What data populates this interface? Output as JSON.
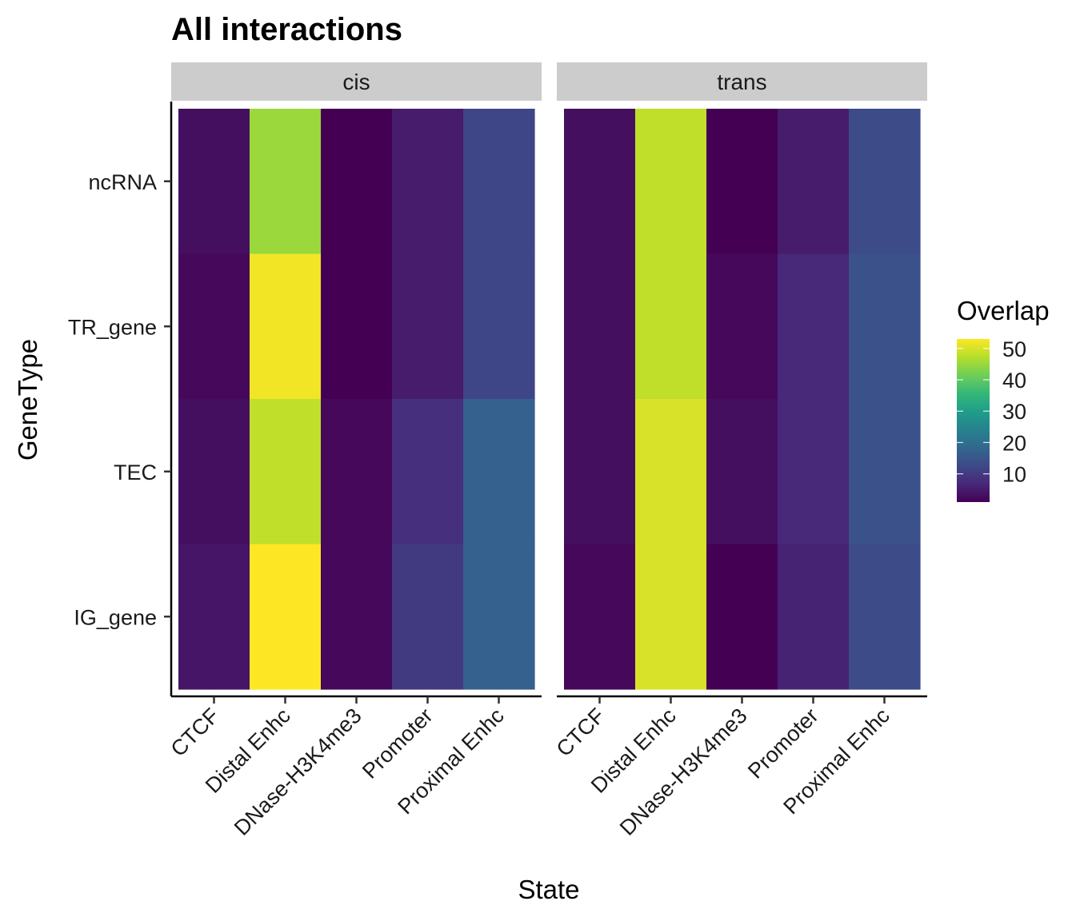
{
  "chart_data": {
    "type": "heatmap",
    "title": "All interactions",
    "xlabel": "State",
    "ylabel": "GeneType",
    "facets": [
      "cis",
      "trans"
    ],
    "x_categories": [
      "CTCF",
      "Distal Enhc",
      "DNase-H3K4me3",
      "Promoter",
      "Proximal Enhc"
    ],
    "y_categories": [
      "ncRNA",
      "TR_gene",
      "TEC",
      "IG_gene"
    ],
    "values": {
      "cis": {
        "ncRNA": [
          3,
          45,
          1,
          5,
          12
        ],
        "TR_gene": [
          2,
          52,
          1,
          5,
          12
        ],
        "TEC": [
          3,
          48,
          2,
          8,
          17
        ],
        "IG_gene": [
          4,
          53,
          2,
          10,
          17
        ]
      },
      "trans": {
        "ncRNA": [
          3,
          48,
          1,
          5,
          13
        ],
        "TR_gene": [
          3,
          48,
          2,
          7,
          14
        ],
        "TEC": [
          3,
          50,
          3,
          7,
          14
        ],
        "IG_gene": [
          2,
          50,
          1,
          6,
          13
        ]
      }
    },
    "legend": {
      "title": "Overlap",
      "breaks": [
        10,
        20,
        30,
        40,
        50
      ],
      "min": 1,
      "max": 53,
      "placement": "right",
      "palette": [
        "#440154",
        "#482878",
        "#3e4989",
        "#31688e",
        "#26828e",
        "#1f9e89",
        "#35b779",
        "#6ece58",
        "#b5de2b",
        "#fde725"
      ]
    },
    "grid": false
  }
}
